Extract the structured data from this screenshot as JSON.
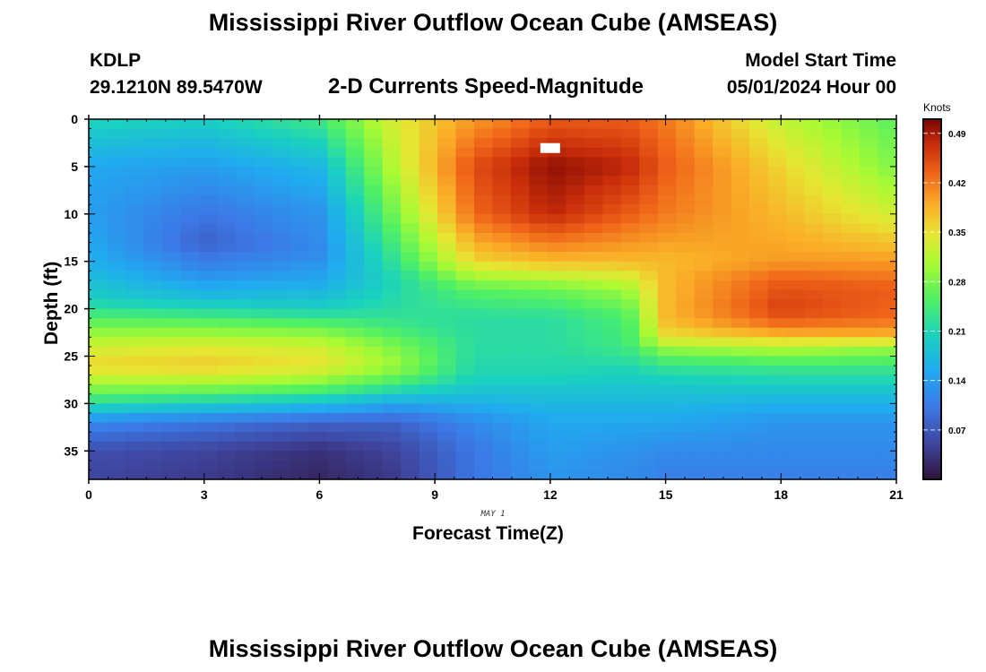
{
  "header": {
    "title": "Mississippi River Outflow Ocean Cube (AMSEAS)",
    "station_id": "KDLP",
    "station_coords": "29.1210N  89.5470W",
    "subtitle": "2-D Currents Speed-Magnitude",
    "model_start_label": "Model Start Time",
    "model_start_value": "05/01/2024 Hour 00"
  },
  "footer": {
    "title": "Mississippi River Outflow Ocean Cube (AMSEAS)"
  },
  "chart_data": {
    "type": "heatmap",
    "title": "2-D Currents Speed-Magnitude",
    "xlabel": "Forecast Time(Z)",
    "ylabel": "Depth (ft)",
    "date_annotation": "MAY 1",
    "x_range": [
      0,
      21
    ],
    "y_range": [
      0,
      38
    ],
    "y_inverted": true,
    "x_ticks": [
      0,
      3,
      6,
      9,
      12,
      15,
      18,
      21
    ],
    "y_ticks": [
      0,
      5,
      10,
      15,
      20,
      25,
      30,
      35
    ],
    "x_tick_labels": [
      "0",
      "3",
      "6",
      "9",
      "12",
      "15",
      "18",
      "21"
    ],
    "y_tick_labels": [
      "0",
      "5",
      "10",
      "15",
      "20",
      "25",
      "30",
      "35"
    ],
    "colorscale": "turbo",
    "colorbar": {
      "unit": "Knots",
      "range": [
        0,
        0.51
      ],
      "ticks": [
        0.07,
        0.14,
        0.21,
        0.28,
        0.35,
        0.42,
        0.49
      ],
      "tick_labels": [
        "0.07",
        "0.14",
        "0.21",
        "0.28",
        "0.35",
        "0.42",
        "0.49"
      ]
    },
    "value_knots": [
      {
        "time": 0,
        "profile": [
          [
            0,
            0.21
          ],
          [
            5,
            0.15
          ],
          [
            10,
            0.14
          ],
          [
            15,
            0.16
          ],
          [
            19,
            0.2
          ],
          [
            22,
            0.28
          ],
          [
            24,
            0.33
          ],
          [
            26,
            0.36
          ],
          [
            28,
            0.3
          ],
          [
            30,
            0.22
          ],
          [
            32,
            0.12
          ],
          [
            35,
            0.06
          ],
          [
            38,
            0.05
          ]
        ]
      },
      {
        "time": 3,
        "profile": [
          [
            0,
            0.2
          ],
          [
            5,
            0.14
          ],
          [
            10,
            0.1
          ],
          [
            13,
            0.08
          ],
          [
            16,
            0.12
          ],
          [
            19,
            0.18
          ],
          [
            22,
            0.28
          ],
          [
            24,
            0.34
          ],
          [
            26,
            0.37
          ],
          [
            28,
            0.3
          ],
          [
            30,
            0.2
          ],
          [
            32,
            0.1
          ],
          [
            35,
            0.05
          ],
          [
            38,
            0.04
          ]
        ]
      },
      {
        "time": 6,
        "profile": [
          [
            0,
            0.24
          ],
          [
            5,
            0.17
          ],
          [
            10,
            0.13
          ],
          [
            14,
            0.12
          ],
          [
            17,
            0.15
          ],
          [
            20,
            0.2
          ],
          [
            22,
            0.27
          ],
          [
            24,
            0.33
          ],
          [
            26,
            0.35
          ],
          [
            28,
            0.28
          ],
          [
            30,
            0.18
          ],
          [
            32,
            0.08
          ],
          [
            35,
            0.03
          ],
          [
            38,
            0.02
          ]
        ]
      },
      {
        "time": 8,
        "profile": [
          [
            0,
            0.34
          ],
          [
            5,
            0.32
          ],
          [
            10,
            0.28
          ],
          [
            14,
            0.24
          ],
          [
            17,
            0.21
          ],
          [
            20,
            0.22
          ],
          [
            22,
            0.24
          ],
          [
            24,
            0.28
          ],
          [
            26,
            0.3
          ],
          [
            28,
            0.24
          ],
          [
            30,
            0.15
          ],
          [
            32,
            0.08
          ],
          [
            35,
            0.05
          ],
          [
            38,
            0.04
          ]
        ]
      },
      {
        "time": 10,
        "profile": [
          [
            0,
            0.4
          ],
          [
            5,
            0.45
          ],
          [
            10,
            0.43
          ],
          [
            15,
            0.36
          ],
          [
            18,
            0.26
          ],
          [
            21,
            0.22
          ],
          [
            24,
            0.22
          ],
          [
            27,
            0.21
          ],
          [
            29,
            0.18
          ],
          [
            32,
            0.12
          ],
          [
            35,
            0.1
          ],
          [
            38,
            0.1
          ]
        ]
      },
      {
        "time": 12,
        "profile": [
          [
            0,
            0.44
          ],
          [
            5,
            0.5
          ],
          [
            10,
            0.48
          ],
          [
            15,
            0.38
          ],
          [
            18,
            0.27
          ],
          [
            21,
            0.22
          ],
          [
            24,
            0.22
          ],
          [
            27,
            0.21
          ],
          [
            29,
            0.18
          ],
          [
            32,
            0.15
          ],
          [
            35,
            0.14
          ],
          [
            38,
            0.13
          ]
        ]
      },
      {
        "time": 14,
        "profile": [
          [
            0,
            0.44
          ],
          [
            5,
            0.48
          ],
          [
            10,
            0.44
          ],
          [
            15,
            0.38
          ],
          [
            18,
            0.3
          ],
          [
            21,
            0.25
          ],
          [
            24,
            0.24
          ],
          [
            27,
            0.2
          ],
          [
            29,
            0.18
          ],
          [
            32,
            0.15
          ],
          [
            35,
            0.13
          ],
          [
            38,
            0.12
          ]
        ]
      },
      {
        "time": 15,
        "profile": [
          [
            0,
            0.42
          ],
          [
            5,
            0.44
          ],
          [
            10,
            0.42
          ],
          [
            15,
            0.38
          ],
          [
            18,
            0.38
          ],
          [
            21,
            0.38
          ],
          [
            23,
            0.35
          ],
          [
            25,
            0.26
          ],
          [
            27,
            0.21
          ],
          [
            29,
            0.18
          ],
          [
            32,
            0.15
          ],
          [
            35,
            0.12
          ],
          [
            38,
            0.11
          ]
        ]
      },
      {
        "time": 18,
        "profile": [
          [
            0,
            0.32
          ],
          [
            5,
            0.36
          ],
          [
            10,
            0.38
          ],
          [
            15,
            0.4
          ],
          [
            17,
            0.44
          ],
          [
            20,
            0.46
          ],
          [
            22,
            0.42
          ],
          [
            24,
            0.32
          ],
          [
            26,
            0.24
          ],
          [
            28,
            0.2
          ],
          [
            30,
            0.16
          ],
          [
            32,
            0.13
          ],
          [
            35,
            0.12
          ],
          [
            38,
            0.11
          ]
        ]
      },
      {
        "time": 21,
        "profile": [
          [
            0,
            0.26
          ],
          [
            5,
            0.28
          ],
          [
            10,
            0.33
          ],
          [
            15,
            0.4
          ],
          [
            18,
            0.44
          ],
          [
            21,
            0.43
          ],
          [
            23,
            0.38
          ],
          [
            24,
            0.3
          ],
          [
            26,
            0.24
          ],
          [
            28,
            0.2
          ],
          [
            30,
            0.16
          ],
          [
            32,
            0.13
          ],
          [
            35,
            0.12
          ],
          [
            38,
            0.11
          ]
        ]
      }
    ],
    "grid_dims": {
      "time_columns": 44,
      "depth_rows": 38
    },
    "marker": {
      "time": 12,
      "depth": 3
    }
  }
}
